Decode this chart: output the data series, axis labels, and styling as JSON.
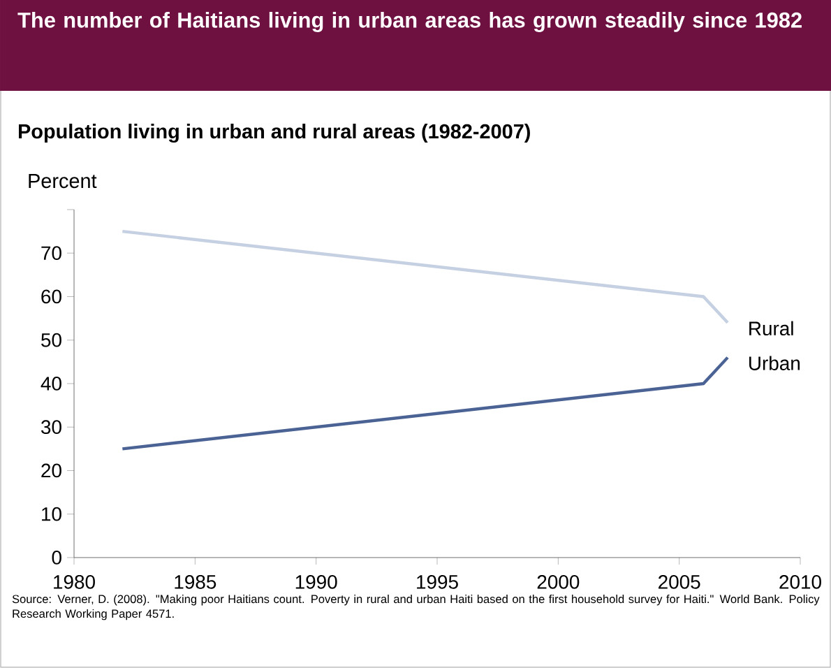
{
  "chart_data": {
    "type": "line",
    "title": "The number of Haitians living in urban areas has grown steadily since 1982",
    "subtitle": "Population living in urban and rural areas (1982-2007)",
    "ylabel": "Percent",
    "annotations": [
      "Source: Verner, D. (2008).  \"Making poor Haitians count. Poverty in rural and urban Haiti based on the first household survey for Haiti.\" World Bank. Policy Research Working Paper 4571."
    ],
    "x": [
      1982,
      2006,
      2007
    ],
    "series": [
      {
        "name": "Rural",
        "color": "#c5d0e2",
        "values": [
          75,
          60,
          54
        ]
      },
      {
        "name": "Urban",
        "color": "#4a6394",
        "values": [
          25,
          40,
          46
        ]
      }
    ],
    "xlim": [
      1980,
      2010
    ],
    "xticks": [
      1980,
      1985,
      1990,
      1995,
      2000,
      2005,
      2010
    ],
    "ylim": [
      0,
      80
    ],
    "yticks": [
      0,
      10,
      20,
      30,
      40,
      50,
      60,
      70,
      {
        "value": 80,
        "label": null
      }
    ]
  }
}
